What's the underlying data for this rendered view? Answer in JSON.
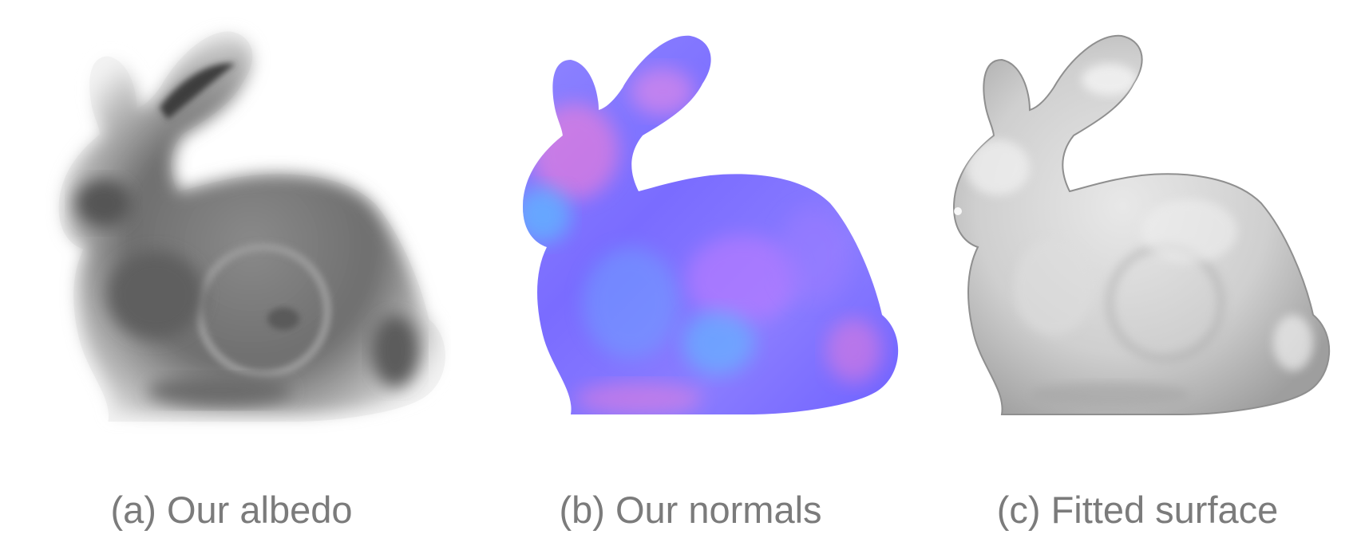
{
  "figure": {
    "panels": [
      {
        "id": "a",
        "caption": "(a) Our albedo",
        "render": "grayscale-albedo",
        "icon": "bunny-albedo-image"
      },
      {
        "id": "b",
        "caption": "(b) Our normals",
        "render": "normal-map",
        "icon": "bunny-normal-map-image"
      },
      {
        "id": "c",
        "caption": "(c) Fitted surface",
        "render": "shaded-mesh",
        "icon": "bunny-mesh-image"
      }
    ],
    "colors": {
      "normals_blue": "#7a6cff",
      "normals_pink": "#ff7fd2",
      "normals_cyan": "#57c8ff",
      "albedo_dark": "#5a5a5a",
      "mesh_gray": "#bdbdbd",
      "caption": "#7b7b7b"
    }
  }
}
